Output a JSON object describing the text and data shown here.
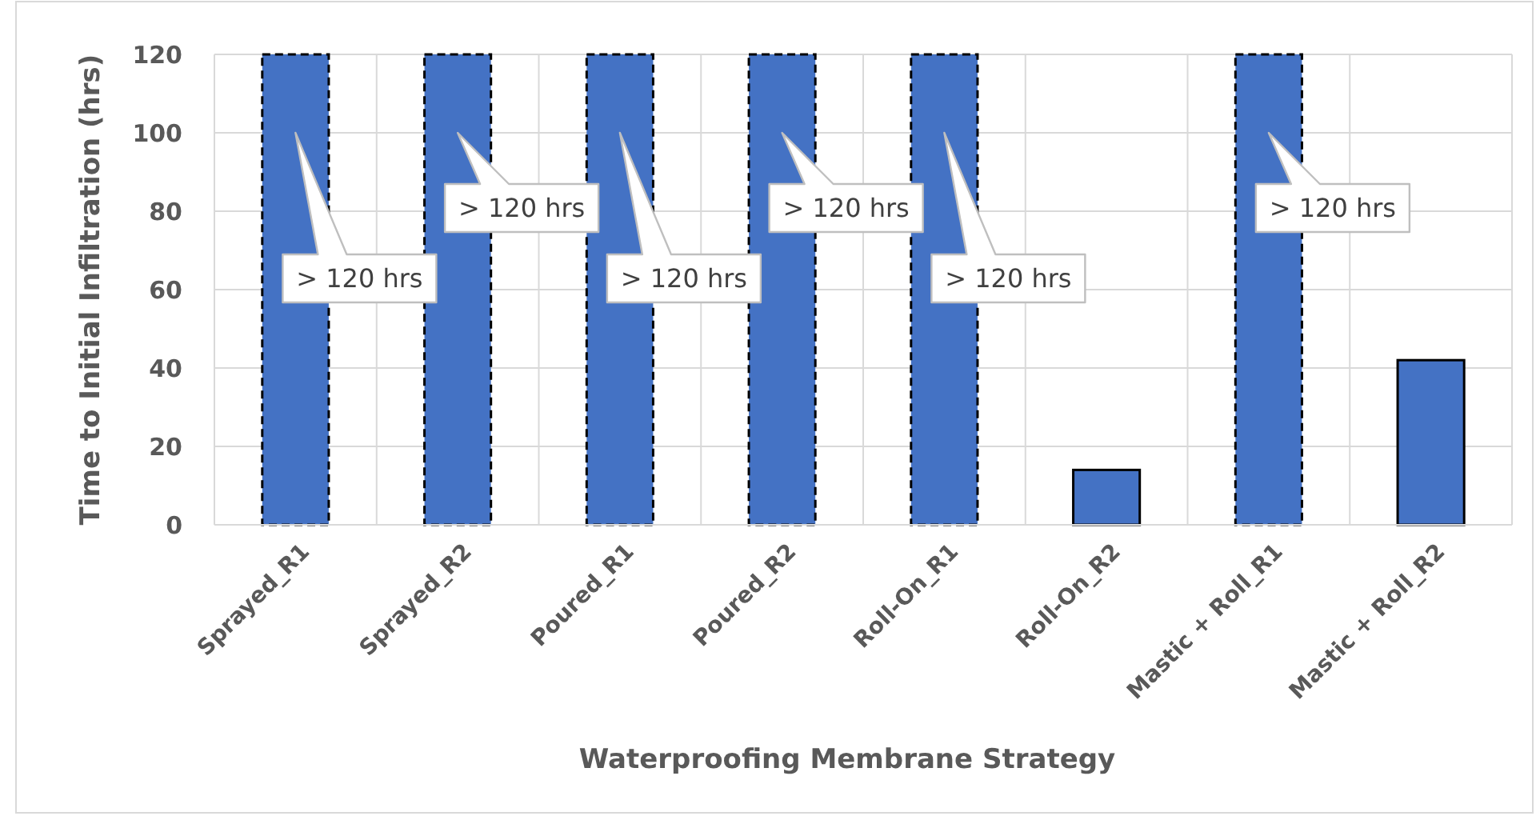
{
  "chart_data": {
    "type": "bar",
    "xlabel": "Waterproofing Membrane Strategy",
    "ylabel": "Time to Initial Infiltration (hrs)",
    "categories": [
      "Sprayed_R1",
      "Sprayed_R2",
      "Poured_R1",
      "Poured_R2",
      "Roll-On_R1",
      "Roll-On_R2",
      "Mastic + Roll_R1",
      "Mastic + Roll_R2"
    ],
    "values": [
      120,
      120,
      120,
      120,
      120,
      14,
      120,
      42
    ],
    "color": "#4472c4",
    "ylim": [
      0,
      120
    ],
    "yticks": [
      0,
      20,
      40,
      60,
      80,
      100,
      120
    ],
    "grid": true,
    "annotations": [
      "> 120 hrs",
      "> 120 hrs",
      "> 120 hrs",
      "> 120 hrs",
      "> 120 hrs",
      "> 120 hrs"
    ]
  }
}
